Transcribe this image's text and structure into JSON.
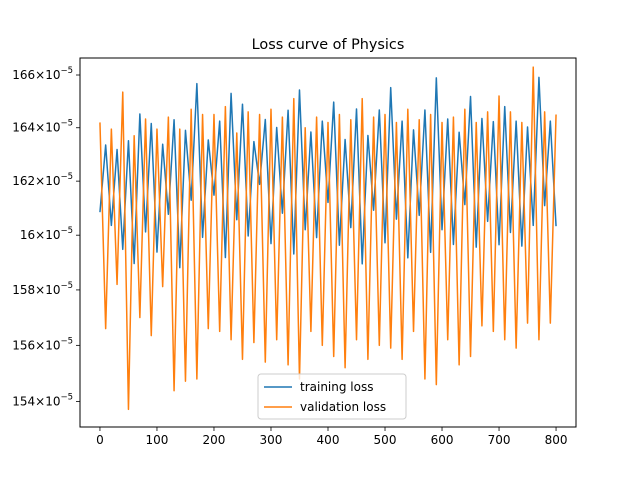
{
  "chart_data": {
    "type": "line",
    "title": "Loss curve of Physics",
    "xlabel": "",
    "ylabel": "",
    "xlim": [
      -35,
      835
    ],
    "ylim": [
      1.531e-05,
      1.6665e-05
    ],
    "yscale": "log",
    "grid": false,
    "legend": {
      "location": "lower center"
    },
    "xticks": [
      0,
      100,
      200,
      300,
      400,
      500,
      600,
      700,
      800
    ],
    "xtick_labels": [
      "0",
      "100",
      "200",
      "300",
      "400",
      "500",
      "600",
      "700",
      "800"
    ],
    "yticks": [
      1.54e-05,
      1.56e-05,
      1.58e-05,
      1.6e-05,
      1.62e-05,
      1.64e-05,
      1.66e-05
    ],
    "ytick_labels": [
      {
        "mant": "154",
        "base": "10",
        "exp": "−5"
      },
      {
        "mant": "156",
        "base": "10",
        "exp": "−5"
      },
      {
        "mant": "158",
        "base": "10",
        "exp": "−5"
      },
      {
        "mant": "16",
        "base": "10",
        "exp": "−5"
      },
      {
        "mant": "162",
        "base": "10",
        "exp": "−5"
      },
      {
        "mant": "164",
        "base": "10",
        "exp": "−5"
      },
      {
        "mant": "166",
        "base": "10",
        "exp": "−5"
      }
    ],
    "series": [
      {
        "name": "training loss",
        "color": "#1f77b4",
        "x": [
          0,
          10,
          20,
          30,
          40,
          50,
          60,
          70,
          80,
          90,
          100,
          110,
          120,
          130,
          140,
          150,
          160,
          170,
          180,
          190,
          200,
          210,
          220,
          230,
          240,
          250,
          260,
          270,
          280,
          290,
          300,
          310,
          320,
          330,
          340,
          350,
          360,
          370,
          380,
          390,
          400,
          410,
          420,
          430,
          440,
          450,
          460,
          470,
          480,
          490,
          500,
          510,
          520,
          530,
          540,
          550,
          560,
          570,
          580,
          590,
          600,
          610,
          620,
          630,
          640,
          650,
          660,
          670,
          680,
          690,
          700,
          710,
          720,
          730,
          740,
          750,
          760,
          770,
          780,
          790,
          800
        ],
        "y": [
          1.6085e-05,
          1.6335e-05,
          1.6036e-05,
          1.6318e-05,
          1.5948e-05,
          1.6351e-05,
          1.5896e-05,
          1.6452e-05,
          1.6012e-05,
          1.6416e-05,
          1.5938e-05,
          1.6338e-05,
          1.6077e-05,
          1.643e-05,
          1.5881e-05,
          1.639e-05,
          1.6129e-05,
          1.6567e-05,
          1.5992e-05,
          1.6354e-05,
          1.6148e-05,
          1.6425e-05,
          1.5918e-05,
          1.653e-05,
          1.6057e-05,
          1.6489e-05,
          1.5997e-05,
          1.6348e-05,
          1.6188e-05,
          1.6431e-05,
          1.5969e-05,
          1.6401e-05,
          1.6081e-05,
          1.6466e-05,
          1.5931e-05,
          1.6543e-05,
          1.602e-05,
          1.6384e-05,
          1.5991e-05,
          1.6425e-05,
          1.6121e-05,
          1.6497e-05,
          1.5963e-05,
          1.6356e-05,
          1.6028e-05,
          1.6471e-05,
          1.5895e-05,
          1.6371e-05,
          1.6092e-05,
          1.6467e-05,
          1.5972e-05,
          1.6552e-05,
          1.6059e-05,
          1.6425e-05,
          1.5917e-05,
          1.6392e-05,
          1.6073e-05,
          1.6467e-05,
          1.5937e-05,
          1.6589e-05,
          1.602e-05,
          1.6433e-05,
          1.5966e-05,
          1.6383e-05,
          1.6113e-05,
          1.6518e-05,
          1.5956e-05,
          1.6435e-05,
          1.6051e-05,
          1.6423e-05,
          1.5965e-05,
          1.648e-05,
          1.601e-05,
          1.6425e-05,
          1.596e-05,
          1.6403e-05,
          1.6036e-05,
          1.6591e-05,
          1.6109e-05,
          1.6425e-05,
          1.6033e-05
        ]
      },
      {
        "name": "validation loss",
        "color": "#ff7f0e",
        "x": [
          0,
          10,
          20,
          30,
          40,
          50,
          60,
          70,
          80,
          90,
          100,
          110,
          120,
          130,
          140,
          150,
          160,
          170,
          180,
          190,
          200,
          210,
          220,
          230,
          240,
          250,
          260,
          270,
          280,
          290,
          300,
          310,
          320,
          330,
          340,
          350,
          360,
          370,
          380,
          390,
          400,
          410,
          420,
          430,
          440,
          450,
          460,
          470,
          480,
          490,
          500,
          510,
          520,
          530,
          540,
          550,
          560,
          570,
          580,
          590,
          600,
          610,
          620,
          630,
          640,
          650,
          660,
          670,
          680,
          690,
          700,
          710,
          720,
          730,
          740,
          750,
          760,
          770,
          780,
          790,
          800
        ],
        "y": [
          1.642e-05,
          1.566e-05,
          1.6395e-05,
          1.582e-05,
          1.6535e-05,
          1.5372e-05,
          1.637e-05,
          1.57e-05,
          1.6433e-05,
          1.5635e-05,
          1.6395e-05,
          1.5812e-05,
          1.644e-05,
          1.5438e-05,
          1.6395e-05,
          1.5472e-05,
          1.647e-05,
          1.548e-05,
          1.645e-05,
          1.566e-05,
          1.645e-05,
          1.565e-05,
          1.648e-05,
          1.562e-05,
          1.638e-05,
          1.555e-05,
          1.646e-05,
          1.561e-05,
          1.645e-05,
          1.554e-05,
          1.647e-05,
          1.562e-05,
          1.644e-05,
          1.553e-05,
          1.651e-05,
          1.548e-05,
          1.64e-05,
          1.565e-05,
          1.644e-05,
          1.56e-05,
          1.642e-05,
          1.556e-05,
          1.645e-05,
          1.552e-05,
          1.643e-05,
          1.562e-05,
          1.651e-05,
          1.555e-05,
          1.644e-05,
          1.56e-05,
          1.645e-05,
          1.559e-05,
          1.642e-05,
          1.555e-05,
          1.647e-05,
          1.565e-05,
          1.643e-05,
          1.548e-05,
          1.645e-05,
          1.546e-05,
          1.642e-05,
          1.562e-05,
          1.644e-05,
          1.553e-05,
          1.647e-05,
          1.556e-05,
          1.642e-05,
          1.567e-05,
          1.646e-05,
          1.565e-05,
          1.652e-05,
          1.562e-05,
          1.646e-05,
          1.559e-05,
          1.642e-05,
          1.568e-05,
          1.663e-05,
          1.562e-05,
          1.646e-05,
          1.568e-05,
          1.645e-05
        ]
      }
    ]
  }
}
